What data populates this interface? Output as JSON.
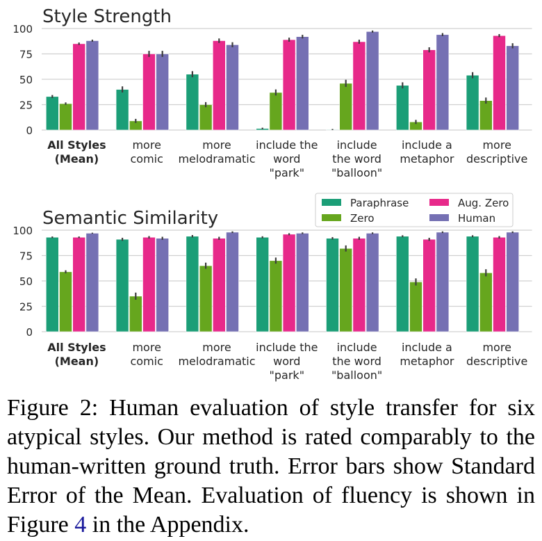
{
  "chart_data": [
    {
      "type": "bar",
      "title": "Style Strength",
      "xlabel": "",
      "ylabel": "",
      "ylim": [
        0,
        100
      ],
      "yticks": [
        0,
        25,
        50,
        75,
        100
      ],
      "grid": "horizontal",
      "categories": [
        [
          "All Styles",
          "(Mean)"
        ],
        [
          "more",
          "comic"
        ],
        [
          "more",
          "melodramatic"
        ],
        [
          "include the",
          "word",
          "\"park\""
        ],
        [
          "include",
          "the word",
          "\"balloon\""
        ],
        [
          "include a",
          "metaphor"
        ],
        [
          "more",
          "descriptive"
        ]
      ],
      "series": [
        {
          "name": "Paraphrase",
          "color": "#1b9e77",
          "values": [
            33,
            40,
            55,
            1.5,
            0.5,
            44,
            54
          ],
          "errors": [
            1.5,
            3,
            3,
            0.8,
            0.5,
            3,
            3
          ]
        },
        {
          "name": "Zero",
          "color": "#66a61e",
          "values": [
            26,
            9,
            25,
            37,
            46,
            8,
            29
          ],
          "errors": [
            1.2,
            2,
            2.5,
            3,
            3.5,
            2,
            3
          ]
        },
        {
          "name": "Aug. Zero",
          "color": "#e7298a",
          "values": [
            85,
            75,
            88,
            89,
            87,
            79,
            93
          ],
          "errors": [
            1.2,
            3,
            2.2,
            2,
            2,
            2.5,
            1.5
          ]
        },
        {
          "name": "Human",
          "color": "#7570b3",
          "values": [
            88,
            75,
            84,
            92,
            97,
            94,
            83
          ],
          "errors": [
            1,
            3,
            2.5,
            1.8,
            1,
            1.5,
            2.5
          ]
        }
      ]
    },
    {
      "type": "bar",
      "title": "Semantic Similarity",
      "xlabel": "",
      "ylabel": "",
      "ylim": [
        0,
        100
      ],
      "yticks": [
        0,
        25,
        50,
        75,
        100
      ],
      "grid": "horizontal",
      "legend": {
        "placement": "top-right",
        "columns": 2,
        "entries": [
          "Paraphrase",
          "Zero",
          "Aug. Zero",
          "Human"
        ]
      },
      "categories": [
        [
          "All Styles",
          "(Mean)"
        ],
        [
          "more",
          "comic"
        ],
        [
          "more",
          "melodramatic"
        ],
        [
          "include the",
          "word",
          "\"park\""
        ],
        [
          "include",
          "the word",
          "\"balloon\""
        ],
        [
          "include a",
          "metaphor"
        ],
        [
          "more",
          "descriptive"
        ]
      ],
      "series": [
        {
          "name": "Paraphrase",
          "color": "#1b9e77",
          "values": [
            93,
            91,
            94,
            93,
            92,
            94,
            94
          ],
          "errors": [
            0.8,
            1.5,
            1.2,
            1,
            1.2,
            1,
            1
          ]
        },
        {
          "name": "Zero",
          "color": "#66a61e",
          "values": [
            59,
            35,
            65,
            70,
            82,
            49,
            58
          ],
          "errors": [
            1.5,
            3.5,
            3,
            3,
            3,
            3.5,
            3.5
          ]
        },
        {
          "name": "Aug. Zero",
          "color": "#e7298a",
          "values": [
            93,
            93,
            92,
            96,
            92,
            91,
            93
          ],
          "errors": [
            0.8,
            1.2,
            1.5,
            1,
            1.5,
            1.5,
            1.2
          ]
        },
        {
          "name": "Human",
          "color": "#7570b3",
          "values": [
            97,
            92,
            98,
            97,
            97,
            98,
            98
          ],
          "errors": [
            0.5,
            1.5,
            0.8,
            0.8,
            0.8,
            0.8,
            0.8
          ]
        }
      ]
    }
  ],
  "caption": {
    "lines": [
      "Figure 2:  Human evaluation of style transfer for six",
      "atypical styles. Our method is rated comparably to the",
      "human-written ground truth. Error bars show Standard",
      "Error of the Mean.  Evaluation of fluency is shown in"
    ],
    "last_line_prefix": "Figure ",
    "figure_ref": "4",
    "last_line_suffix": " in the Appendix."
  }
}
